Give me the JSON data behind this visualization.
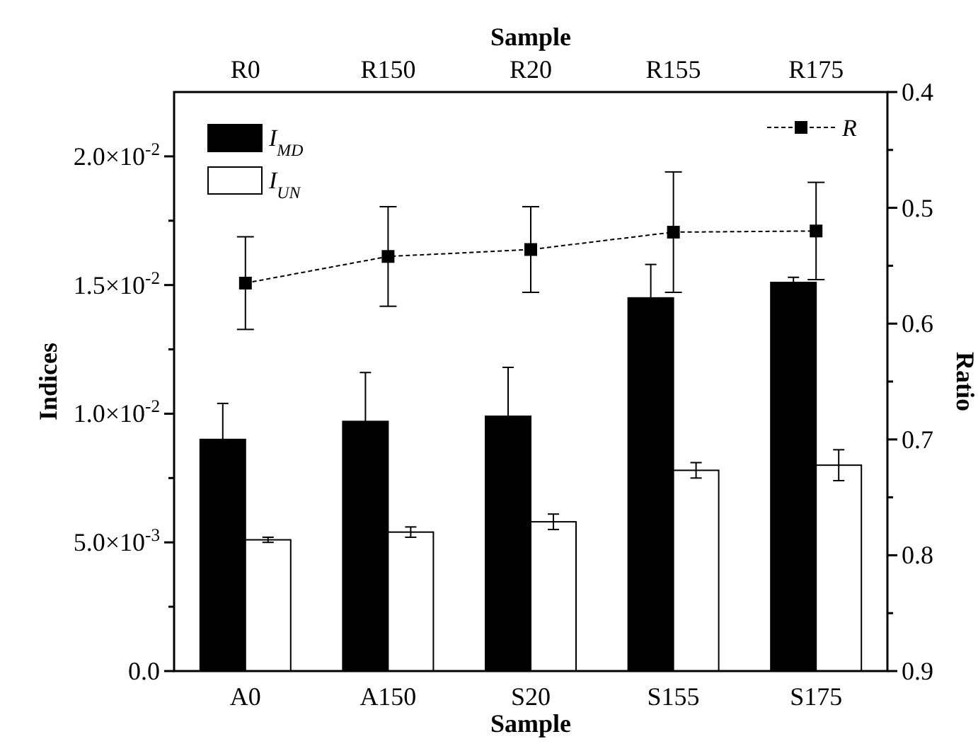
{
  "chart_data": {
    "type": "bar",
    "xlabel": "Sample",
    "ylabel": "Indices",
    "y2label": "Ratio",
    "x2label": "Sample",
    "categories": [
      "A0",
      "A150",
      "S20",
      "S155",
      "S175"
    ],
    "annotations": [
      "R0",
      "R150",
      "R20",
      "R155",
      "R175"
    ],
    "series": [
      {
        "name": "I$_{MD}$",
        "color": "#000000",
        "values": [
          0.009,
          0.0097,
          0.0099,
          0.0145,
          0.0151
        ],
        "errors": [
          0.0014,
          0.0019,
          0.0019,
          0.0013,
          0.0002
        ]
      },
      {
        "name": "I$_{UN}$",
        "color": "#ffffff",
        "values": [
          0.0051,
          0.0054,
          0.0058,
          0.0078,
          0.008
        ],
        "errors": [
          0.0001,
          0.0002,
          0.0003,
          0.0003,
          0.0006
        ]
      },
      {
        "name": "R",
        "type": "line",
        "axis": "y2",
        "color": "#000000",
        "marker": "square",
        "line_style": "dashed",
        "values": [
          0.565,
          0.542,
          0.536,
          0.521,
          0.52
        ],
        "errors": [
          0.04,
          0.043,
          0.037,
          0.052,
          0.042
        ]
      }
    ],
    "ylim": [
      0,
      0.0225
    ],
    "yticks": [
      {
        "value": 0,
        "label": "0.0"
      },
      {
        "value": 0.0025,
        "label": null
      },
      {
        "value": 0.005,
        "label": "5.0×10$^{-3}$"
      },
      {
        "value": 0.0075,
        "label": null
      },
      {
        "value": 0.01,
        "label": "1.0×10$^{-2}$"
      },
      {
        "value": 0.0125,
        "label": null
      },
      {
        "value": 0.015,
        "label": "1.5×10$^{-2}$"
      },
      {
        "value": 0.0175,
        "label": null
      },
      {
        "value": 0.02,
        "label": "2.0×10$^{-2}$"
      }
    ],
    "y2lim": [
      0.9,
      0.4
    ],
    "y2ticks": [
      0.4,
      {
        "value": 0.45,
        "label": null
      },
      0.5,
      {
        "value": 0.55,
        "label": null
      },
      0.6,
      {
        "value": 0.65,
        "label": null
      },
      0.7,
      {
        "value": 0.75,
        "label": null
      },
      0.8,
      {
        "value": 0.85,
        "label": null
      },
      0.9
    ],
    "grid": false,
    "legend": "top left"
  }
}
